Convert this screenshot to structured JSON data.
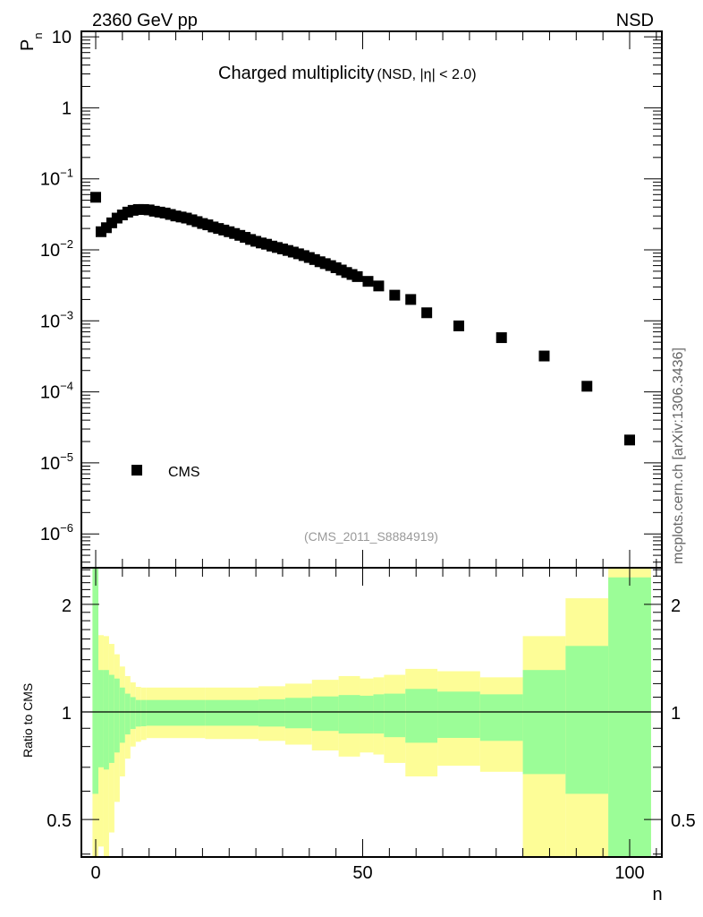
{
  "header": {
    "energy_label": "2360 GeV pp",
    "process_label": "NSD"
  },
  "watermark": "mcplots.cern.ch [arXiv:1306.3436]",
  "colors": {
    "marker": "#000000",
    "band_outer": "#fdfd97",
    "band_inner": "#9bfd97",
    "analysis_text": "#999999"
  },
  "chart_data": [
    {
      "type": "scatter",
      "title": "Charged multiplicity",
      "subtitle": "(NSD, |η| < 2.0)",
      "ylabel": "P",
      "ylabel_sub": "n",
      "yscale": "log",
      "xlim": [
        -2.7,
        106
      ],
      "ylim": [
        3.3e-07,
        12.3
      ],
      "analysis_id": "(CMS_2011_S8884919)",
      "legend": [
        {
          "label": "CMS",
          "marker": "square",
          "placement": "bottom-left"
        }
      ],
      "y_ticks": [
        {
          "value": 10,
          "base": "10",
          "exp": ""
        },
        {
          "value": 1,
          "base": "1",
          "exp": ""
        },
        {
          "value": 0.1,
          "base": "10",
          "exp": "−1"
        },
        {
          "value": 0.01,
          "base": "10",
          "exp": "−2"
        },
        {
          "value": 0.001,
          "base": "10",
          "exp": "−3"
        },
        {
          "value": 0.0001,
          "base": "10",
          "exp": "−4"
        },
        {
          "value": 1e-05,
          "base": "10",
          "exp": "−5"
        },
        {
          "value": 1e-06,
          "base": "10",
          "exp": "−6"
        }
      ],
      "series": [
        {
          "name": "CMS",
          "x": [
            0,
            1,
            2,
            3,
            4,
            5,
            6,
            7,
            8,
            9,
            10,
            11,
            12,
            13,
            14,
            15,
            16,
            17,
            18,
            19,
            20,
            21,
            22,
            23,
            24,
            25,
            26,
            27,
            28,
            29,
            30,
            31,
            32,
            33,
            34,
            35,
            36,
            37,
            38,
            39,
            40,
            41,
            42,
            43,
            44,
            45,
            46,
            47,
            48,
            49,
            51,
            53,
            56,
            59,
            62,
            68,
            76,
            84,
            92,
            100
          ],
          "y": [
            0.055,
            0.018,
            0.0205,
            0.024,
            0.028,
            0.031,
            0.034,
            0.036,
            0.037,
            0.037,
            0.0365,
            0.035,
            0.034,
            0.033,
            0.0315,
            0.03,
            0.029,
            0.028,
            0.0265,
            0.025,
            0.0235,
            0.0225,
            0.021,
            0.02,
            0.019,
            0.018,
            0.017,
            0.016,
            0.015,
            0.014,
            0.0132,
            0.0125,
            0.012,
            0.0113,
            0.0108,
            0.0103,
            0.0098,
            0.0093,
            0.0088,
            0.0083,
            0.0078,
            0.0073,
            0.0068,
            0.0064,
            0.006,
            0.0056,
            0.0052,
            0.0048,
            0.0045,
            0.0042,
            0.0036,
            0.0031,
            0.0023,
            0.002,
            0.0013,
            0.00085,
            0.00058,
            0.00032,
            0.00012,
            2.1e-05
          ]
        }
      ]
    },
    {
      "type": "area",
      "ylabel": "Ratio to CMS",
      "xlabel": "n",
      "yscale": "log",
      "xlim": [
        -2.7,
        106
      ],
      "ylim": [
        0.39,
        2.55
      ],
      "reference_line": 1,
      "x_ticks": [
        {
          "value": 0,
          "label": "0"
        },
        {
          "value": 50,
          "label": "50"
        },
        {
          "value": 100,
          "label": "100"
        }
      ],
      "y_ticks": [
        {
          "value": 2,
          "label": "2"
        },
        {
          "value": 1,
          "label": "1"
        },
        {
          "value": 0.5,
          "label": "0.5"
        }
      ],
      "band_columns": [
        "x_lo",
        "x_hi",
        "outer_lo",
        "inner_lo",
        "inner_hi",
        "outer_hi"
      ],
      "bands": [
        [
          -0.6,
          0.5,
          0.3,
          0.59,
          2.6,
          2.6
        ],
        [
          0.5,
          1.5,
          0.42,
          0.7,
          1.31,
          1.64
        ],
        [
          1.5,
          2.5,
          0.3,
          0.69,
          1.31,
          1.63
        ],
        [
          2.5,
          3.5,
          0.46,
          0.72,
          1.27,
          1.55
        ],
        [
          3.5,
          4.5,
          0.56,
          0.77,
          1.24,
          1.45
        ],
        [
          4.5,
          5.5,
          0.66,
          0.82,
          1.17,
          1.34
        ],
        [
          5.5,
          6.5,
          0.74,
          0.865,
          1.125,
          1.26
        ],
        [
          6.5,
          7.5,
          0.8,
          0.896,
          1.1,
          1.21
        ],
        [
          7.5,
          8.5,
          0.825,
          0.91,
          1.08,
          1.175
        ],
        [
          8.5,
          9.5,
          0.835,
          0.912,
          1.08,
          1.17
        ],
        [
          9.5,
          20.5,
          0.845,
          0.915,
          1.08,
          1.17
        ],
        [
          20.5,
          30.5,
          0.84,
          0.915,
          1.08,
          1.17
        ],
        [
          30.5,
          35.5,
          0.83,
          0.91,
          1.085,
          1.18
        ],
        [
          35.5,
          40.5,
          0.81,
          0.9,
          1.095,
          1.2
        ],
        [
          40.5,
          45.5,
          0.78,
          0.885,
          1.105,
          1.23
        ],
        [
          45.5,
          49.5,
          0.75,
          0.87,
          1.115,
          1.26
        ],
        [
          49.5,
          52,
          0.77,
          0.87,
          1.11,
          1.24
        ],
        [
          52,
          54,
          0.76,
          0.87,
          1.12,
          1.25
        ],
        [
          54,
          58,
          0.72,
          0.85,
          1.125,
          1.27
        ],
        [
          58,
          64,
          0.66,
          0.82,
          1.16,
          1.32
        ],
        [
          64,
          72,
          0.707,
          0.846,
          1.14,
          1.3
        ],
        [
          72,
          80,
          0.68,
          0.83,
          1.12,
          1.25
        ],
        [
          80,
          88,
          0.3,
          0.67,
          1.31,
          1.63
        ],
        [
          88,
          96,
          0.3,
          0.59,
          1.53,
          2.08
        ],
        [
          96,
          104,
          0.3,
          0.3,
          2.38,
          2.6
        ]
      ]
    }
  ]
}
